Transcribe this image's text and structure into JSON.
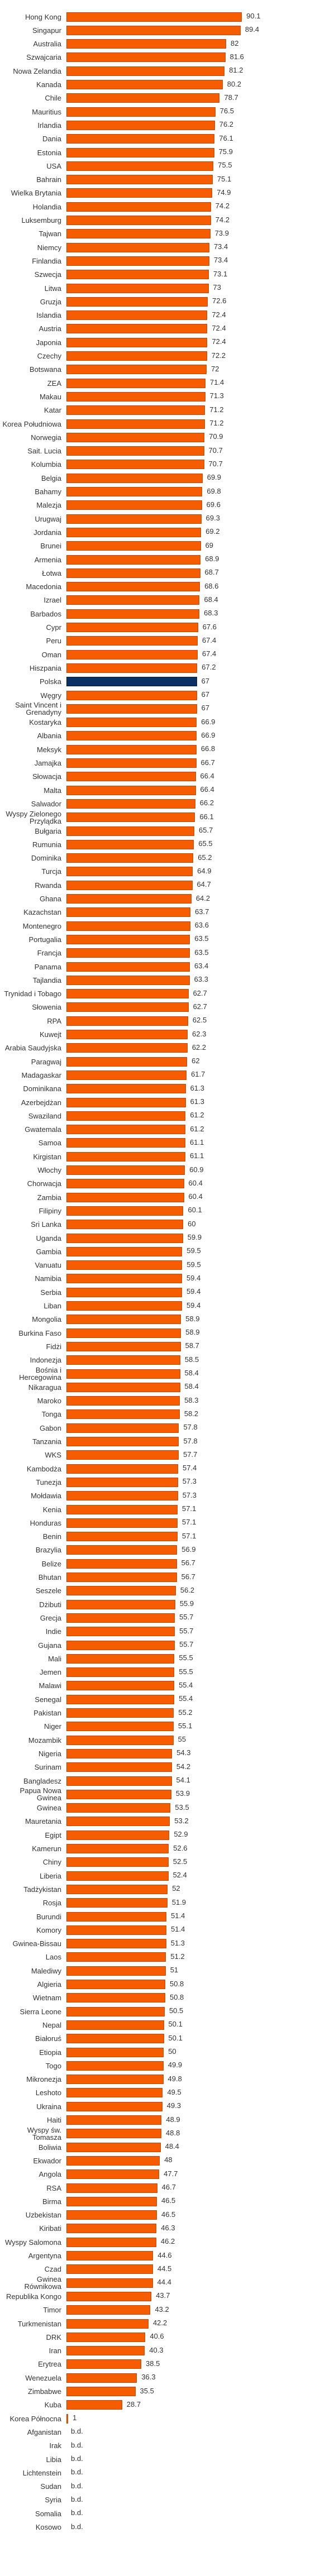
{
  "chart_data": {
    "type": "bar",
    "orientation": "horizontal",
    "title": "",
    "xlabel": "",
    "ylabel": "",
    "xlim": [
      0,
      138
    ],
    "grid": false,
    "missing_label": "b.d.",
    "highlight_category": "Polska",
    "colors": {
      "bar": "#f55d00",
      "bar_border": "#c94300",
      "highlight": "#0a3163",
      "highlight_border": "#041a3a",
      "text": "#333333"
    },
    "categories": [
      "Hong Kong",
      "Singapur",
      "Australia",
      "Szwajcaria",
      "Nowa Zelandia",
      "Kanada",
      "Chile",
      "Mauritius",
      "Irlandia",
      "Dania",
      "Estonia",
      "USA",
      "Bahrain",
      "Wielka Brytania",
      "Holandia",
      "Luksemburg",
      "Tajwan",
      "Niemcy",
      "Finlandia",
      "Szwecja",
      "Litwa",
      "Gruzja",
      "Islandia",
      "Austria",
      "Japonia",
      "Czechy",
      "Botswana",
      "ZEA",
      "Makau",
      "Katar",
      "Korea Południowa",
      "Norwegia",
      "Sait. Lucia",
      "Kolumbia",
      "Belgia",
      "Bahamy",
      "Malezja",
      "Urugwaj",
      "Jordania",
      "Brunei",
      "Armenia",
      "Łotwa",
      "Macedonia",
      "Izrael",
      "Barbados",
      "Cypr",
      "Peru",
      "Oman",
      "Hiszpania",
      "Polska",
      "Węgry",
      "Saint Vincent i Grenadyny",
      "Kostaryka",
      "Albania",
      "Meksyk",
      "Jamajka",
      "Słowacja",
      "Malta",
      "Salwador",
      "Wyspy Zielonego\nPrzylądka",
      "Bułgaria",
      "Rumunia",
      "Dominika",
      "Turcja",
      "Rwanda",
      "Ghana",
      "Kazachstan",
      "Montenegro",
      "Portugalia",
      "Francja",
      "Panama",
      "Tajlandia",
      "Trynidad i Tobago",
      "Słowenia",
      "RPA",
      "Kuwejt",
      "Arabia Saudyjska",
      "Paragwaj",
      "Madagaskar",
      "Dominikana",
      "Azerbejdżan",
      "Swaziland",
      "Gwatemala",
      "Samoa",
      "Kirgistan",
      "Włochy",
      "Chorwacja",
      "Zambia",
      "Filipiny",
      "Sri Lanka",
      "Uganda",
      "Gambia",
      "Vanuatu",
      "Namibia",
      "Serbia",
      "Liban",
      "Mongolia",
      "Burkina Faso",
      "Fidżi",
      "Indonezja",
      "Bośnia i Hercegowina",
      "Nikaragua",
      "Maroko",
      "Tonga",
      "Gabon",
      "Tanzania",
      "WKS",
      "Kambodża",
      "Tunezja",
      "Mołdawia",
      "Kenia",
      "Honduras",
      "Benin",
      "Brazylia",
      "Belize",
      "Bhutan",
      "Seszele",
      "Dżibuti",
      "Grecja",
      "Indie",
      "Gujana",
      "Mali",
      "Jemen",
      "Malawi",
      "Senegal",
      "Pakistan",
      "Niger",
      "Mozambik",
      "Nigeria",
      "Surinam",
      "Bangladesz",
      "Papua Nowa Gwinea",
      "Gwinea",
      "Mauretania",
      "Egipt",
      "Kamerun",
      "Chiny",
      "Liberia",
      "Tadżykistan",
      "Rosja",
      "Burundi",
      "Komory",
      "Gwinea-Bissau",
      "Laos",
      "Malediwy",
      "Algieria",
      "Wietnam",
      "Sierra Leone",
      "Nepal",
      "Białoruś",
      "Etiopia",
      "Togo",
      "Mikronezja",
      "Leshoto",
      "Ukraina",
      "Haiti",
      "Wyspy św. Tomasza",
      "Boliwia",
      "Ekwador",
      "Angola",
      "RSA",
      "Birma",
      "Uzbekistan",
      "Kiribati",
      "Wyspy Salomona",
      "Argentyna",
      "Czad",
      "Gwinea Równikowa",
      "Republika Kongo",
      "Timor",
      "Turkmenistan",
      "DRK",
      "Iran",
      "Erytrea",
      "Wenezuela",
      "Zimbabwe",
      "Kuba",
      "Korea Północna",
      "Afganistan",
      "Irak",
      "Libia",
      "Lichtenstein",
      "Sudan",
      "Syria",
      "Somalia",
      "Kosowo"
    ],
    "values": [
      90.1,
      89.4,
      82,
      81.6,
      81.2,
      80.2,
      78.7,
      76.5,
      76.2,
      76.1,
      75.9,
      75.5,
      75.1,
      74.9,
      74.2,
      74.2,
      73.9,
      73.4,
      73.4,
      73.1,
      73,
      72.6,
      72.4,
      72.4,
      72.4,
      72.2,
      72,
      71.4,
      71.3,
      71.2,
      71.2,
      70.9,
      70.7,
      70.7,
      69.9,
      69.8,
      69.6,
      69.3,
      69.2,
      69,
      68.9,
      68.7,
      68.6,
      68.4,
      68.3,
      67.6,
      67.4,
      67.4,
      67.2,
      67,
      67,
      67,
      66.9,
      66.9,
      66.8,
      66.7,
      66.4,
      66.4,
      66.2,
      66.1,
      65.7,
      65.5,
      65.2,
      64.9,
      64.7,
      64.2,
      63.7,
      63.6,
      63.5,
      63.5,
      63.4,
      63.3,
      62.7,
      62.7,
      62.5,
      62.3,
      62.2,
      62,
      61.7,
      61.3,
      61.3,
      61.2,
      61.2,
      61.1,
      61.1,
      60.9,
      60.4,
      60.4,
      60.1,
      60,
      59.9,
      59.5,
      59.5,
      59.4,
      59.4,
      59.4,
      58.9,
      58.9,
      58.7,
      58.5,
      58.4,
      58.4,
      58.3,
      58.2,
      57.8,
      57.8,
      57.7,
      57.4,
      57.3,
      57.3,
      57.1,
      57.1,
      57.1,
      56.9,
      56.7,
      56.7,
      56.2,
      55.9,
      55.7,
      55.7,
      55.7,
      55.5,
      55.5,
      55.4,
      55.4,
      55.2,
      55.1,
      55,
      54.3,
      54.2,
      54.1,
      53.9,
      53.5,
      53.2,
      52.9,
      52.6,
      52.5,
      52.4,
      52,
      51.9,
      51.4,
      51.4,
      51.3,
      51.2,
      51,
      50.8,
      50.8,
      50.5,
      50.1,
      50.1,
      50,
      49.9,
      49.8,
      49.5,
      49.3,
      48.9,
      48.8,
      48.4,
      48,
      47.7,
      46.7,
      46.5,
      46.5,
      46.3,
      46.2,
      44.6,
      44.5,
      44.4,
      43.7,
      43.2,
      42.2,
      40.6,
      40.3,
      38.5,
      36.3,
      35.5,
      28.7,
      1,
      "b.d.",
      "b.d.",
      "b.d.",
      "b.d.",
      "b.d.",
      "b.d.",
      "b.d.",
      "b.d."
    ]
  }
}
